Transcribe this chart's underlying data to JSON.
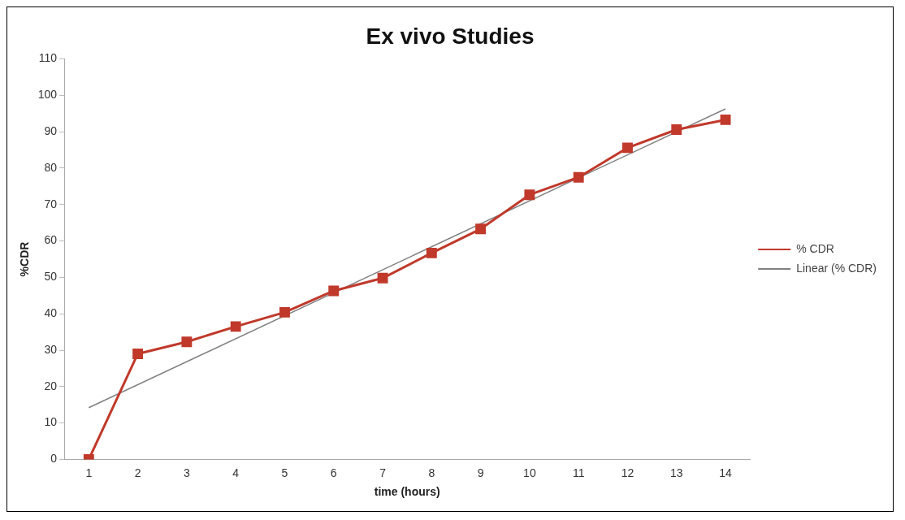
{
  "chart_data": {
    "type": "line",
    "title": "Ex vivo Studies",
    "xlabel": "time (hours)",
    "ylabel": "%CDR",
    "x": [
      1,
      2,
      3,
      4,
      5,
      6,
      7,
      8,
      9,
      10,
      11,
      12,
      13,
      14
    ],
    "series": [
      {
        "name": "% CDR",
        "color": "#c0392b",
        "values": [
          0,
          29,
          32.3,
          36.5,
          40.4,
          46.3,
          49.8,
          56.7,
          63.3,
          72.7,
          77.5,
          85.6,
          90.6,
          93.3
        ],
        "marker": "square"
      },
      {
        "name": "Linear (% CDR)",
        "type": "line",
        "color": "#808080",
        "x": [
          1,
          14
        ],
        "values": [
          14.2,
          96.3
        ],
        "marker": "none"
      }
    ],
    "xlim": [
      0.5,
      14.5
    ],
    "xticks": [
      1,
      2,
      3,
      4,
      5,
      6,
      7,
      8,
      9,
      10,
      11,
      12,
      13,
      14
    ],
    "ylim": [
      0,
      110
    ],
    "yticks": [
      0,
      10,
      20,
      30,
      40,
      50,
      60,
      70,
      80,
      90,
      100,
      110
    ],
    "grid": false,
    "legend": "right",
    "line_style": "solid"
  }
}
